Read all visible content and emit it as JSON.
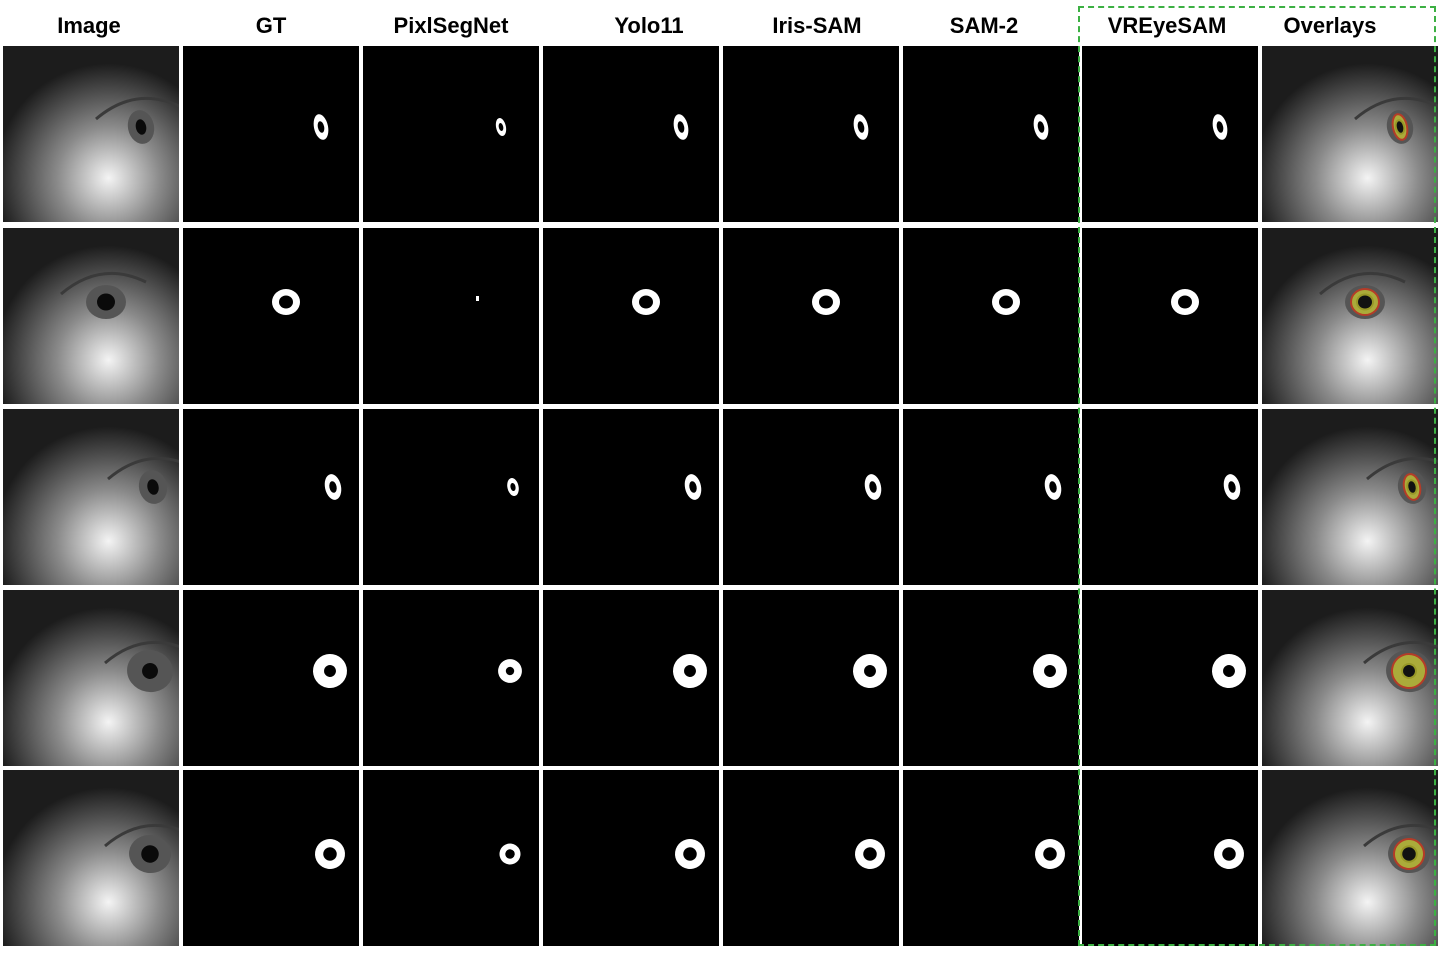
{
  "figure": {
    "columns": [
      {
        "key": "image",
        "label": "Image"
      },
      {
        "key": "gt",
        "label": "GT"
      },
      {
        "key": "pixlsegnet",
        "label": "PixlSegNet"
      },
      {
        "key": "yolo11",
        "label": "Yolo11"
      },
      {
        "key": "iris_sam",
        "label": "Iris-SAM"
      },
      {
        "key": "sam2",
        "label": "SAM-2"
      },
      {
        "key": "vreyesam",
        "label": "VREyeSAM"
      },
      {
        "key": "overlays",
        "label": "Overlays"
      }
    ],
    "highlighted_columns": [
      "VREyeSAM",
      "Overlays"
    ],
    "row_count": 5,
    "colors": {
      "background": "#ffffff",
      "highlight_border": "#3cb043",
      "mask_foreground": "#ffffff",
      "mask_background": "#000000",
      "overlay_iris": "#c8c832",
      "overlay_pupil": "#b43c28"
    }
  }
}
